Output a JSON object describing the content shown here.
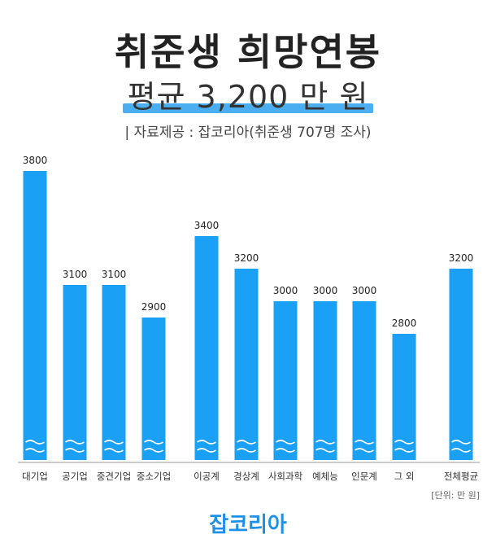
{
  "header": {
    "title": "취준생 희망연봉",
    "subtitle": "평균 3,200 만 원",
    "source": "| 자료제공 : 잡코리아(취준생 707명 조사)"
  },
  "unit_note": "[단위: 만 원]",
  "brand": "잡코리아",
  "colors": {
    "bar": "#1aa0f5",
    "highlight": "#4aaef0",
    "brand": "#1e90e8"
  },
  "chart_data": {
    "type": "bar",
    "title": "취준생 희망연봉",
    "categories": [
      "대기업",
      "공기업",
      "중견기업",
      "중소기업",
      "이공계",
      "경상계",
      "사회과학",
      "예체능",
      "인문계",
      "그 외",
      "전체평균"
    ],
    "values": [
      3800,
      3100,
      3100,
      2900,
      3400,
      3200,
      3000,
      3000,
      3000,
      2800,
      3200
    ],
    "data_labels": [
      "3800",
      "3100",
      "3100",
      "2900",
      "3400",
      "3200",
      "3000",
      "3000",
      "3000",
      "2800",
      "3200"
    ],
    "unit": "만 원",
    "axis_break": true,
    "grid": false,
    "legend": "none"
  }
}
